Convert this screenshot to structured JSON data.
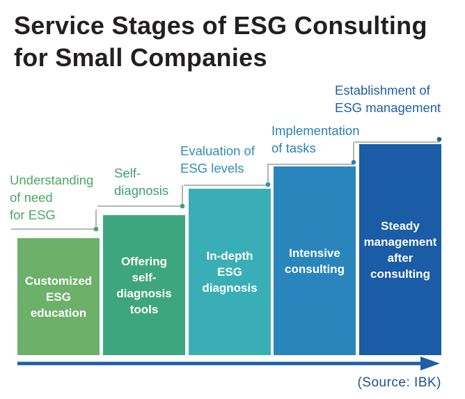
{
  "title": {
    "line1": "Service Stages of ESG Consulting",
    "line2": "for Small Companies"
  },
  "stages": [
    {
      "label": "Understanding\nof need\nfor ESG",
      "bar_text": "Customized\nESG\neducation",
      "color": "#6cb06a",
      "label_color": "#4aa867"
    },
    {
      "label": "Self-\ndiagnosis",
      "bar_text": "Offering\nself-\ndiagnosis\ntools",
      "color": "#3da67e",
      "label_color": "#3d9e74"
    },
    {
      "label": "Evaluation of\nESG levels",
      "bar_text": "In-depth\nESG\ndiagnosis",
      "color": "#3aaeb6",
      "label_color": "#2f8fb0"
    },
    {
      "label": "Implementation\nof tasks",
      "bar_text": "Intensive\nconsulting",
      "color": "#2a85bd",
      "label_color": "#2a7fb8"
    },
    {
      "label": "Establishment of\nESG management",
      "bar_text": "Steady\nmanagement\nafter\nconsulting",
      "color": "#1a5ca6",
      "label_color": "#1f5fa8"
    }
  ],
  "source": "(Source: IBK)",
  "colors": {
    "title": "#231f20",
    "arrow": "#1f5fa8",
    "connector": "#8a8a8a"
  }
}
